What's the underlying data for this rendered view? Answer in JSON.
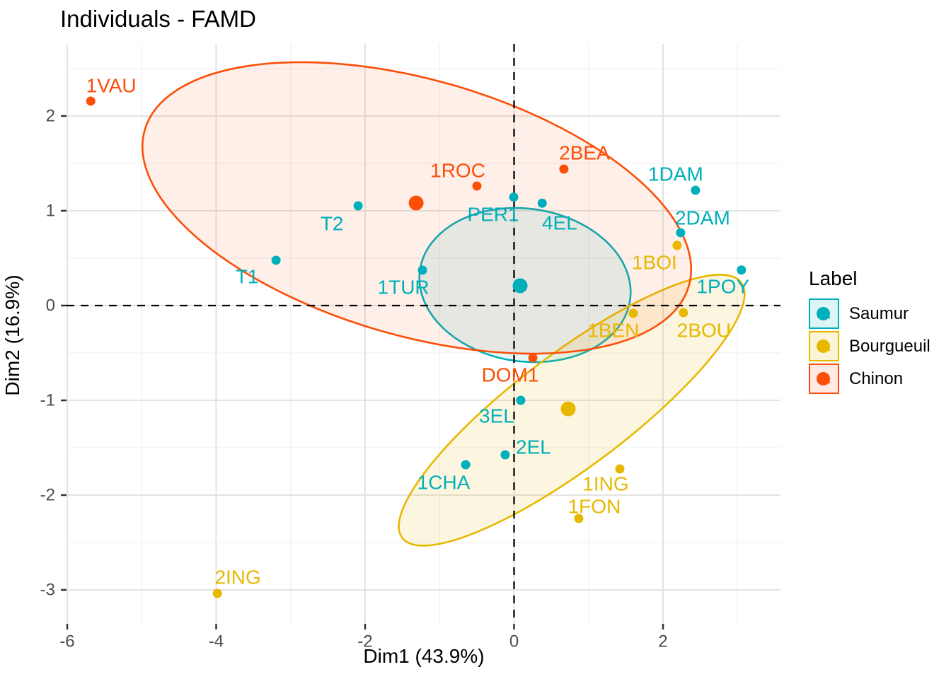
{
  "chart_data": {
    "type": "scatter",
    "title": "Individuals - FAMD",
    "xlabel": "Dim1 (43.9%)",
    "ylabel": "Dim2 (16.9%)",
    "xlim": [
      -6.0095,
      3.5772
    ],
    "ylim": [
      -3.358,
      2.761
    ],
    "x_major_ticks": [
      {
        "v": -6,
        "label": "-6"
      },
      {
        "v": -4,
        "label": "-4"
      },
      {
        "v": -2,
        "label": "-2"
      },
      {
        "v": 0,
        "label": "0"
      },
      {
        "v": 2,
        "label": "2"
      }
    ],
    "x_minor_ticks": [
      -5,
      -3,
      -1,
      1,
      3
    ],
    "y_major_ticks": [
      {
        "v": 2,
        "label": "2"
      },
      {
        "v": 1,
        "label": "1"
      },
      {
        "v": 0,
        "label": "0"
      },
      {
        "v": -1,
        "label": "-1"
      },
      {
        "v": -2,
        "label": "-2"
      },
      {
        "v": -3,
        "label": "-3"
      }
    ],
    "y_minor_ticks": [
      2.5,
      1.5,
      0.5,
      -0.5,
      -1.5,
      -2.5
    ],
    "reference_lines": {
      "vline_x": 0,
      "hline_y": 0,
      "style": "dashed",
      "color": "#000000"
    },
    "grid": {
      "major_color": "#e3e3e3",
      "minor_color": "#f1f1f1"
    },
    "legend": {
      "title": "Label",
      "position": "right",
      "items": [
        "Saumur",
        "Bourgueuil",
        "Chinon"
      ]
    },
    "series": [
      {
        "name": "Saumur",
        "color": "#00AFBB",
        "fill_alpha": 0.1,
        "points": [
          {
            "label": "T1",
            "x": -3.196,
            "y": 0.478,
            "lx": -3.585,
            "ly": 0.306
          },
          {
            "label": "T2",
            "x": -2.094,
            "y": 1.052,
            "lx": -2.445,
            "ly": 0.866
          },
          {
            "label": "1TUR",
            "x": -1.23,
            "y": 0.373,
            "lx": -1.486,
            "ly": 0.194
          },
          {
            "label": "PER1",
            "x": -0.005,
            "y": 1.144,
            "lx": -0.28,
            "ly": 0.963
          },
          {
            "label": "4EL",
            "x": 0.378,
            "y": 1.08,
            "lx": 0.612,
            "ly": 0.873
          },
          {
            "label": "1DAM",
            "x": 2.436,
            "y": 1.216,
            "lx": 2.17,
            "ly": 1.388
          },
          {
            "label": "2DAM",
            "x": 2.236,
            "y": 0.769,
            "lx": 2.531,
            "ly": 0.925
          },
          {
            "label": "1POY",
            "x": 3.053,
            "y": 0.375,
            "lx": 2.806,
            "ly": 0.201
          },
          {
            "label": "3EL",
            "x": 0.09,
            "y": -1.0,
            "lx": -0.233,
            "ly": -1.164
          },
          {
            "label": "2EL",
            "x": -0.119,
            "y": -1.575,
            "lx": 0.261,
            "ly": -1.493
          },
          {
            "label": "1CHA",
            "x": -0.65,
            "y": -1.679,
            "lx": -0.945,
            "ly": -1.866
          }
        ],
        "centroid": {
          "x": 0.081,
          "y": 0.209
        },
        "ellipse": {
          "cx": 0.147,
          "cy": 0.216,
          "rx_units": 1.425,
          "ry_units": 0.806,
          "angle_deg": 8
        }
      },
      {
        "name": "Bourgueuil",
        "color": "#E7B800",
        "fill_alpha": 0.12,
        "points": [
          {
            "label": "1BOI",
            "x": 2.189,
            "y": 0.634,
            "lx": 1.885,
            "ly": 0.455
          },
          {
            "label": "1BEN",
            "x": 1.6,
            "y": -0.082,
            "lx": 1.334,
            "ly": -0.261
          },
          {
            "label": "2BOU",
            "x": 2.274,
            "y": -0.075,
            "lx": 2.55,
            "ly": -0.261
          },
          {
            "label": "1ING",
            "x": 1.42,
            "y": -1.724,
            "lx": 1.23,
            "ly": -1.881
          },
          {
            "label": "1FON",
            "x": 0.869,
            "y": -2.246,
            "lx": 1.078,
            "ly": -2.119
          },
          {
            "label": "2ING",
            "x": -3.984,
            "y": -3.037,
            "lx": -3.709,
            "ly": -2.866
          }
        ],
        "centroid": {
          "x": 0.727,
          "y": -1.09
        },
        "ellipse": {
          "cx": 0.774,
          "cy": -1.104,
          "rx_units": 2.85,
          "ry_units": 0.597,
          "angle_deg": -37
        }
      },
      {
        "name": "Chinon",
        "color": "#FC4E07",
        "fill_alpha": 0.09,
        "points": [
          {
            "label": "1VAU",
            "x": -5.684,
            "y": 2.157,
            "lx": -5.41,
            "ly": 2.321
          },
          {
            "label": "1ROC",
            "x": -0.499,
            "y": 1.261,
            "lx": -0.755,
            "ly": 1.425
          },
          {
            "label": "2BEA",
            "x": 0.669,
            "y": 1.44,
            "lx": 0.945,
            "ly": 1.612
          },
          {
            "label": "DOM1",
            "x": 0.252,
            "y": -0.552,
            "lx": -0.052,
            "ly": -0.731
          }
        ],
        "centroid": {
          "x": -1.315,
          "y": 1.082
        },
        "ellipse": {
          "cx": -1.306,
          "cy": 1.03,
          "rx_units": 3.8,
          "ry_units": 1.351,
          "angle_deg": 16
        }
      }
    ],
    "point_radius": 6.5,
    "centroid_radius": 10.5
  }
}
